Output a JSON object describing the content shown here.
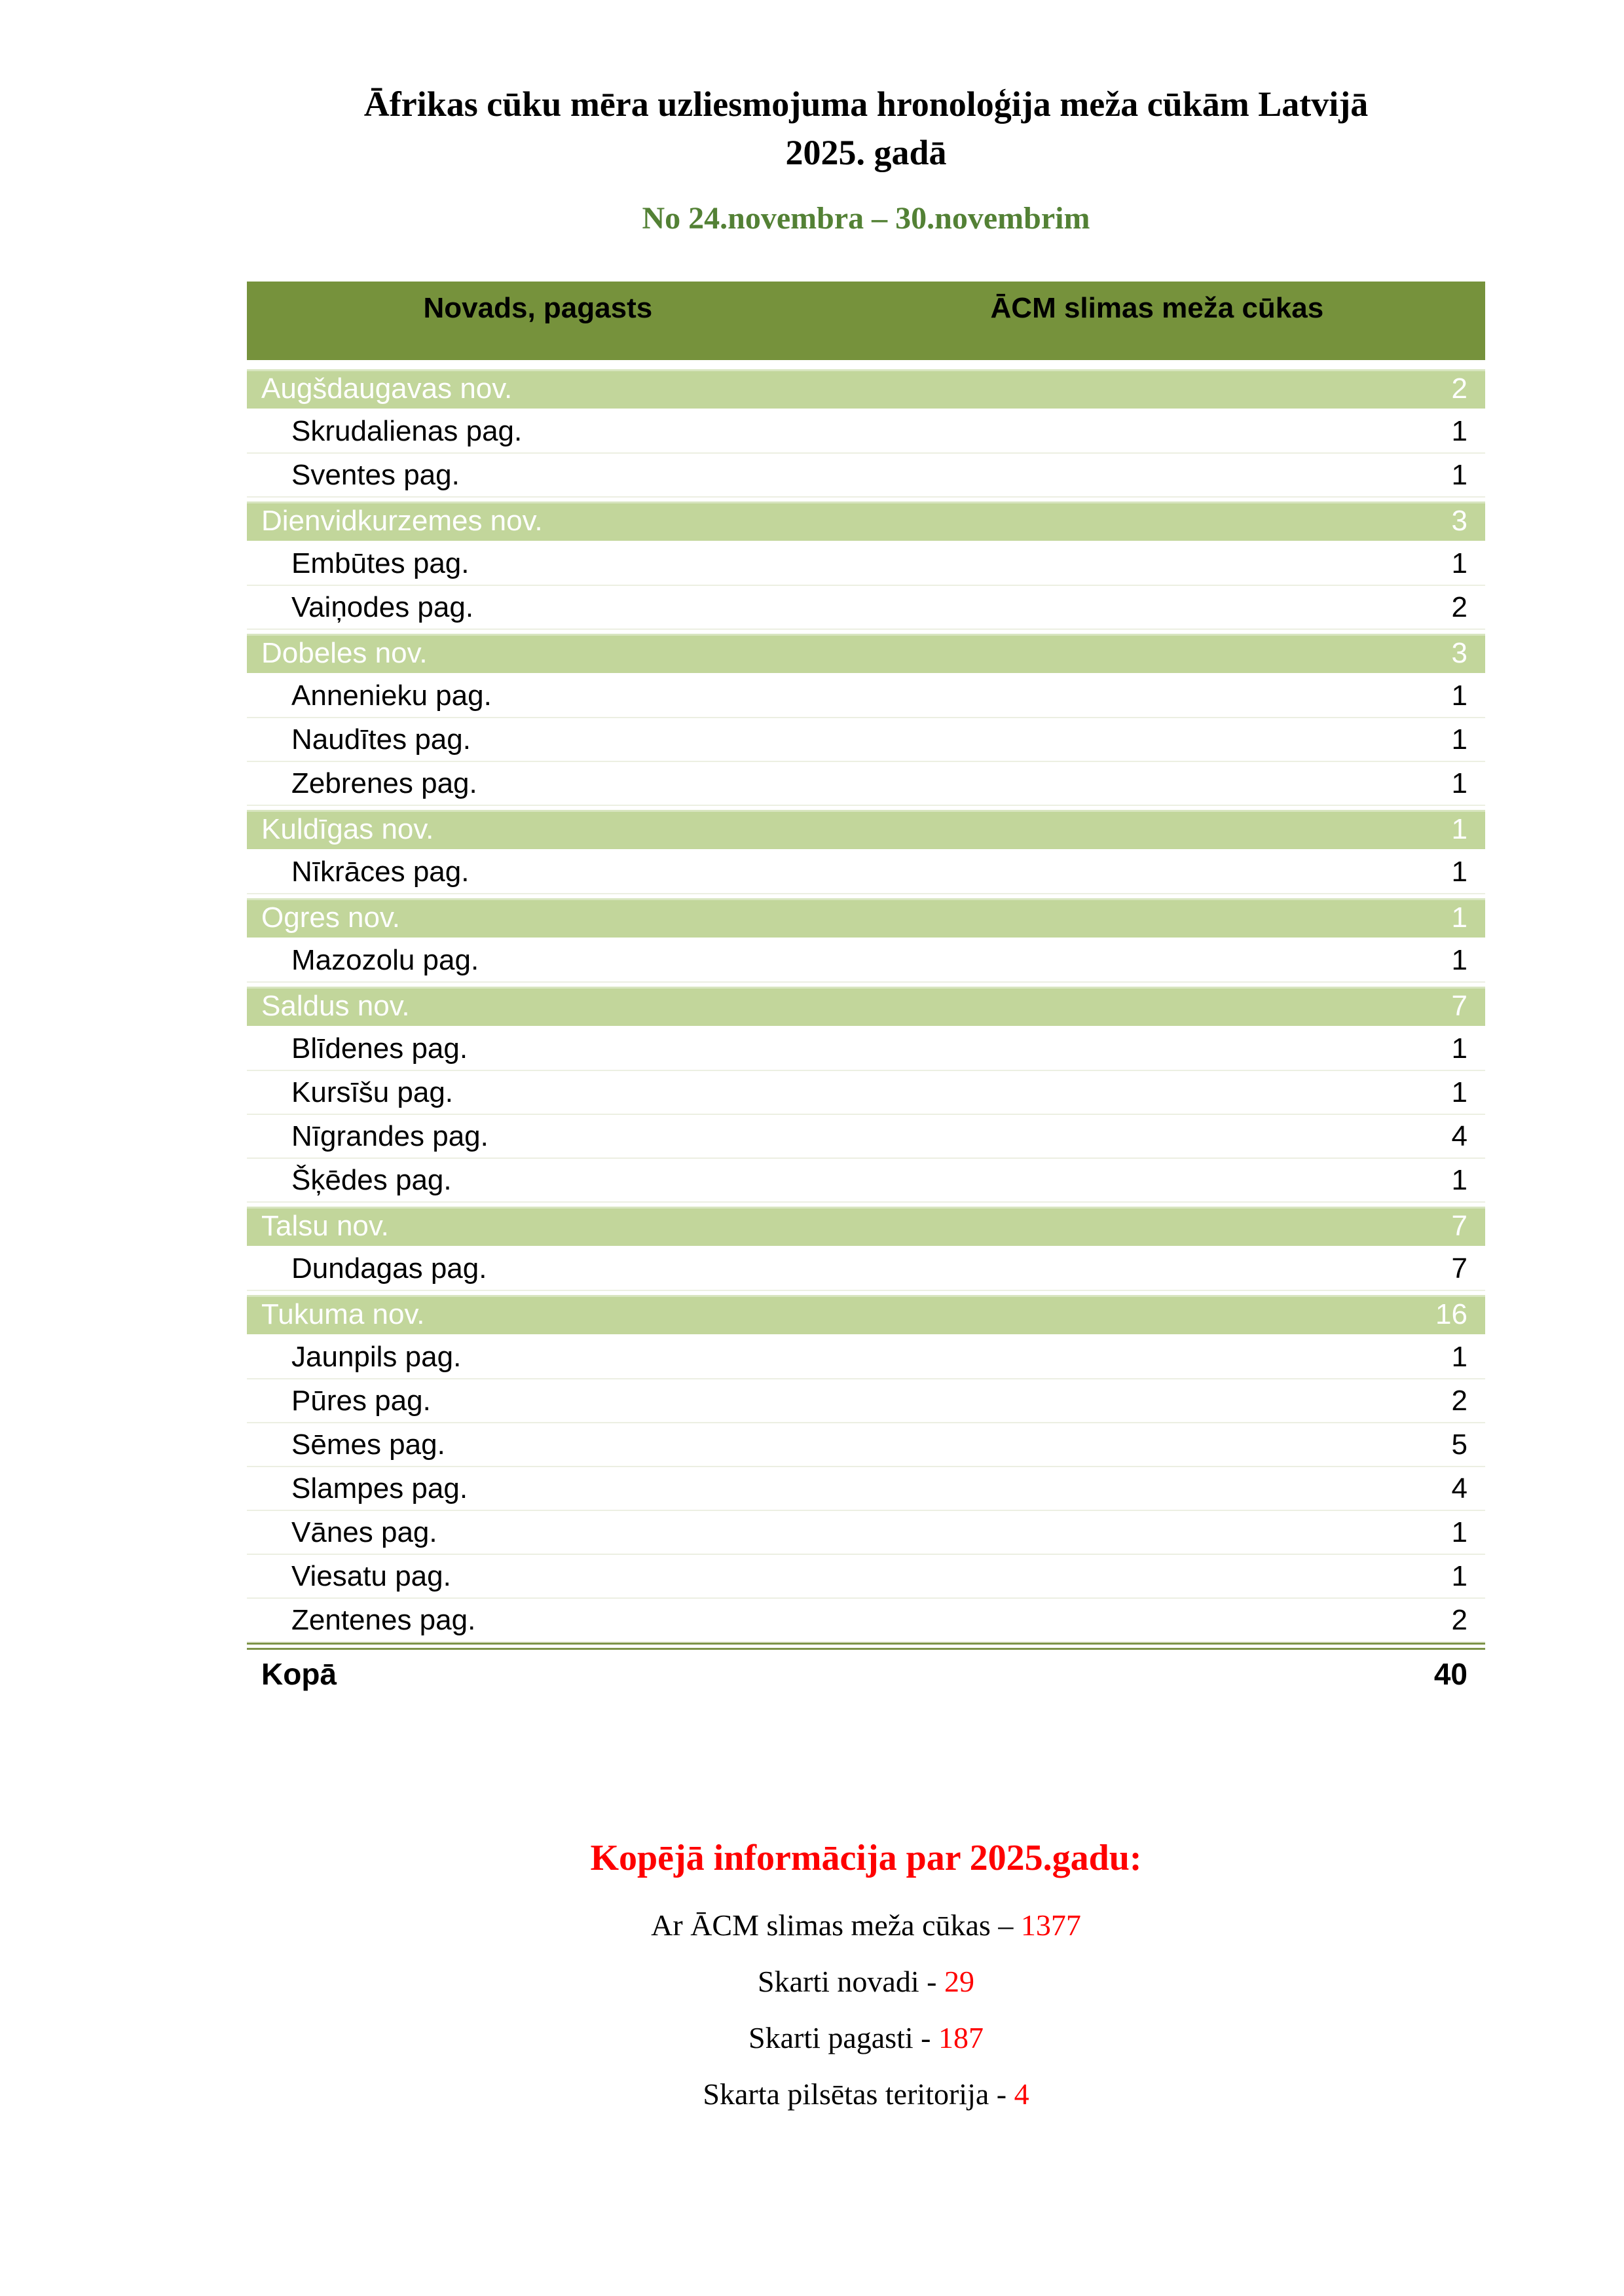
{
  "colors": {
    "green_dark": "#76923C",
    "green_light": "#C2D69B",
    "rule_olive": "#7E9449",
    "subtitle_green": "#538135",
    "red": "#FE0000"
  },
  "header": {
    "title_line1": "Āfrikas cūku mēra uzliesmojuma hronoloģija meža cūkām Latvijā",
    "title_line2": "2025. gadā",
    "subtitle": "No 24.novembra – 30.novembrim"
  },
  "table": {
    "columns": [
      "Novads, pagasts",
      "ĀCM slimas meža cūkas"
    ],
    "rows": [
      {
        "type": "region",
        "name": "Augšdaugavas nov.",
        "value": "2"
      },
      {
        "type": "pagasts",
        "name": "Skrudalienas pag.",
        "value": "1"
      },
      {
        "type": "pagasts",
        "name": "Sventes pag.",
        "value": "1"
      },
      {
        "type": "region",
        "name": "Dienvidkurzemes nov.",
        "value": "3"
      },
      {
        "type": "pagasts",
        "name": "Embūtes pag.",
        "value": "1"
      },
      {
        "type": "pagasts",
        "name": "Vaiņodes pag.",
        "value": "2"
      },
      {
        "type": "region",
        "name": "Dobeles nov.",
        "value": "3"
      },
      {
        "type": "pagasts",
        "name": "Annenieku pag.",
        "value": "1"
      },
      {
        "type": "pagasts",
        "name": "Naudītes pag.",
        "value": "1"
      },
      {
        "type": "pagasts",
        "name": "Zebrenes pag.",
        "value": "1"
      },
      {
        "type": "region",
        "name": "Kuldīgas nov.",
        "value": "1"
      },
      {
        "type": "pagasts",
        "name": "Nīkrāces pag.",
        "value": "1"
      },
      {
        "type": "region",
        "name": "Ogres nov.",
        "value": "1"
      },
      {
        "type": "pagasts",
        "name": "Mazozolu pag.",
        "value": "1"
      },
      {
        "type": "region",
        "name": "Saldus nov.",
        "value": "7"
      },
      {
        "type": "pagasts",
        "name": "Blīdenes pag.",
        "value": "1"
      },
      {
        "type": "pagasts",
        "name": "Kursīšu pag.",
        "value": "1"
      },
      {
        "type": "pagasts",
        "name": "Nīgrandes pag.",
        "value": "4"
      },
      {
        "type": "pagasts",
        "name": "Šķēdes pag.",
        "value": "1"
      },
      {
        "type": "region",
        "name": "Talsu nov.",
        "value": "7"
      },
      {
        "type": "pagasts",
        "name": "Dundagas pag.",
        "value": "7"
      },
      {
        "type": "region",
        "name": "Tukuma nov.",
        "value": "16"
      },
      {
        "type": "pagasts",
        "name": "Jaunpils pag.",
        "value": "1"
      },
      {
        "type": "pagasts",
        "name": "Pūres pag.",
        "value": "2"
      },
      {
        "type": "pagasts",
        "name": "Sēmes pag.",
        "value": "5"
      },
      {
        "type": "pagasts",
        "name": "Slampes pag.",
        "value": "4"
      },
      {
        "type": "pagasts",
        "name": "Vānes pag.",
        "value": "1"
      },
      {
        "type": "pagasts",
        "name": "Viesatu pag.",
        "value": "1"
      },
      {
        "type": "pagasts",
        "name": "Zentenes pag.",
        "value": "2"
      }
    ],
    "total_label": "Kopā",
    "total_value": "40"
  },
  "summary": {
    "heading": "Kopējā informācija par 2025.gadu:",
    "lines": [
      {
        "label": "Ar ĀCM slimas meža cūkas",
        "separator": "–",
        "value": "1377"
      },
      {
        "label": "Skarti novadi",
        "separator": "-",
        "value": "29"
      },
      {
        "label": "Skarti pagasti",
        "separator": "-",
        "value": "187"
      },
      {
        "label": "Skarta pilsētas teritorija",
        "separator": "-",
        "value": "4"
      }
    ]
  }
}
